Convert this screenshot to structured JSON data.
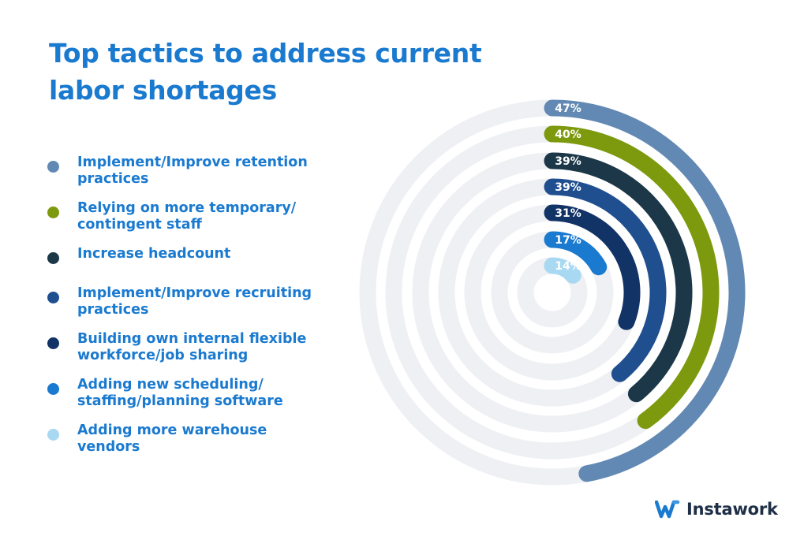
{
  "title": "Top tactics to address current labor shortages",
  "brand": {
    "name": "Instawork",
    "logo_icon": "instawork-w-logo-icon",
    "logo_color": "#1a7ad0"
  },
  "colors": {
    "title": "#1a7ad0",
    "track": "#eef0f3"
  },
  "chart_data": {
    "type": "radial-bar",
    "title": "Top tactics to address current labor shortages",
    "unit": "%",
    "max_value": 100,
    "series": [
      {
        "name": "Implement/Improve retention practices",
        "value": 47,
        "label": "47%",
        "color": "#6289b3"
      },
      {
        "name": "Relying on more temporary/ contingent staff",
        "value": 40,
        "label": "40%",
        "color": "#7d9a0e"
      },
      {
        "name": "Increase headcount",
        "value": 39,
        "label": "39%",
        "color": "#1b3748"
      },
      {
        "name": "Implement/Improve recruiting practices",
        "value": 39,
        "label": "39%",
        "color": "#1f4f8f"
      },
      {
        "name": "Building own internal flexible workforce/job sharing",
        "value": 31,
        "label": "31%",
        "color": "#113366"
      },
      {
        "name": "Adding new scheduling/ staffing/planning software",
        "value": 17,
        "label": "17%",
        "color": "#1a7ad0"
      },
      {
        "name": "Adding more warehouse vendors",
        "value": 14,
        "label": "14%",
        "color": "#a8d8f2"
      }
    ],
    "legend_position": "left"
  }
}
